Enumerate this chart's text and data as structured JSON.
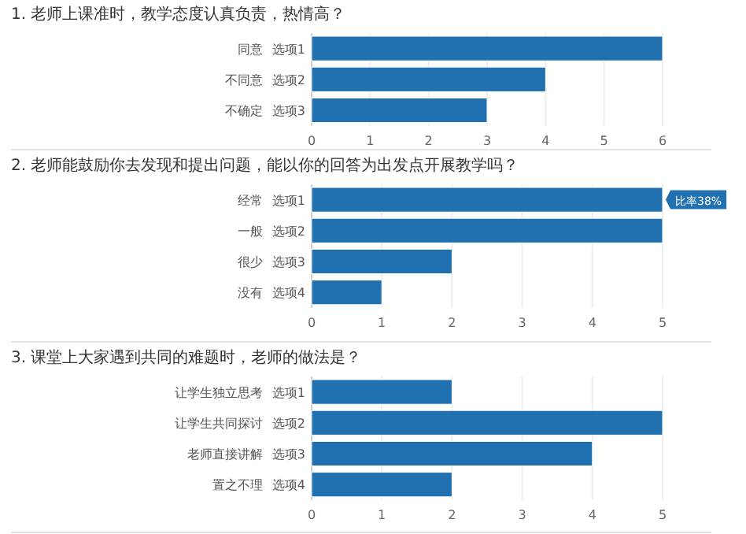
{
  "chart_data": [
    {
      "type": "bar",
      "orientation": "horizontal",
      "title": "1. 老师上课准时，教学态度认真负责，热情高？",
      "categories": [
        "同意",
        "不同意",
        "不确定"
      ],
      "y2_categories": [
        "选项1",
        "选项2",
        "选项3"
      ],
      "values": [
        6,
        4,
        3
      ],
      "color": "#2170b0",
      "xlim": [
        0,
        6
      ],
      "xticks": [
        0,
        1,
        2,
        3,
        4,
        5,
        6
      ],
      "grid": "x"
    },
    {
      "type": "bar",
      "orientation": "horizontal",
      "title": "2. 老师能鼓励你去发现和提出问题，能以你的回答为出发点开展教学吗？",
      "categories": [
        "经常",
        "一般",
        "很少",
        "没有"
      ],
      "y2_categories": [
        "选项1",
        "选项2",
        "选项3",
        "选项4"
      ],
      "values": [
        5,
        5,
        2,
        1
      ],
      "color": "#2170b0",
      "xlim": [
        0,
        5
      ],
      "xticks": [
        0,
        1,
        2,
        3,
        4,
        5
      ],
      "grid": "x",
      "annotations": [
        {
          "text": "比率38%",
          "x": 5,
          "y": "经常"
        }
      ]
    },
    {
      "type": "bar",
      "orientation": "horizontal",
      "title": "3. 课堂上大家遇到共同的难题时，老师的做法是？",
      "categories": [
        "让学生独立思考",
        "让学生共同探讨",
        "老师直接讲解",
        "置之不理"
      ],
      "y2_categories": [
        "选项1",
        "选项2",
        "选项3",
        "选项4"
      ],
      "values": [
        2,
        5,
        4,
        2
      ],
      "color": "#2170b0",
      "xlim": [
        0,
        5
      ],
      "xticks": [
        0,
        1,
        2,
        3,
        4,
        5
      ],
      "grid": "x"
    }
  ]
}
